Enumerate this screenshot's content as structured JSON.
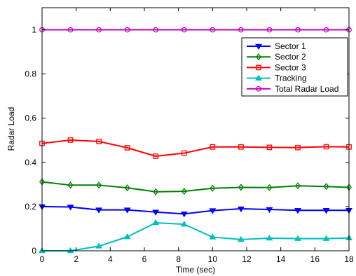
{
  "chart_data": {
    "type": "line",
    "title": "",
    "xlabel": "Time (sec)",
    "ylabel": "Radar Load",
    "xlim": [
      0,
      18
    ],
    "ylim": [
      0,
      1.1
    ],
    "xticks": [
      0,
      2,
      4,
      6,
      8,
      10,
      12,
      14,
      16,
      18
    ],
    "yticks": [
      0,
      0.2,
      0.4,
      0.6,
      0.8,
      1
    ],
    "xtick_labels": [
      "0",
      "2",
      "4",
      "6",
      "8",
      "10",
      "12",
      "14",
      "16",
      "18"
    ],
    "ytick_labels": [
      "0",
      "0.2",
      "0.4",
      "0.6",
      "0.8",
      "1"
    ],
    "grid": false,
    "legend_position": "top-right",
    "x": [
      0,
      1.667,
      3.333,
      5.0,
      6.667,
      8.333,
      10.0,
      11.667,
      13.333,
      15.0,
      16.667,
      18.0
    ],
    "series": [
      {
        "name": "Sector 1",
        "color": "#0000ff",
        "marker": "triangle-down",
        "values": [
          0.2,
          0.198,
          0.185,
          0.185,
          0.175,
          0.167,
          0.182,
          0.19,
          0.187,
          0.183,
          0.183,
          0.183
        ]
      },
      {
        "name": "Sector 2",
        "color": "#008000",
        "marker": "diamond",
        "values": [
          0.312,
          0.297,
          0.297,
          0.285,
          0.267,
          0.269,
          0.283,
          0.287,
          0.286,
          0.294,
          0.291,
          0.287
        ]
      },
      {
        "name": "Sector 3",
        "color": "#ff0000",
        "marker": "square",
        "values": [
          0.486,
          0.501,
          0.495,
          0.466,
          0.428,
          0.442,
          0.47,
          0.47,
          0.468,
          0.467,
          0.471,
          0.47
        ]
      },
      {
        "name": "Tracking",
        "color": "#00bfbf",
        "marker": "triangle-up",
        "values": [
          0.0,
          0.0,
          0.021,
          0.063,
          0.127,
          0.12,
          0.062,
          0.051,
          0.057,
          0.055,
          0.055,
          0.058
        ]
      },
      {
        "name": "Total Radar Load",
        "color": "#bf00bf",
        "marker": "circle",
        "values": [
          1,
          1,
          1,
          1,
          1,
          1,
          1,
          1,
          1,
          1,
          1,
          1
        ]
      }
    ]
  }
}
